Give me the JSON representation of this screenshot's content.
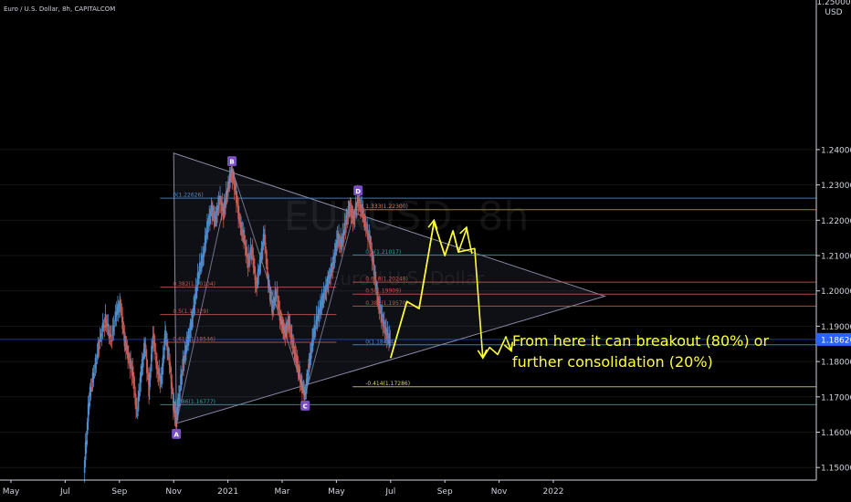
{
  "header": {
    "title": "Euro / U.S. Dollar, 8h, CAPITALCOM"
  },
  "watermark": {
    "symbol": "EURUSD, 8h",
    "name": "Euro / U.S. Dollar"
  },
  "colors": {
    "background": "#000000",
    "axis_text": "#d1d4dc",
    "up_candle": "#4f8fd0",
    "down_candle": "#c85a52",
    "pattern_line": "#8c8aa6",
    "arrow": "#ffff3a",
    "last_price_badge": "#2962ff"
  },
  "chart_data": {
    "type": "candlestick",
    "title": "Euro / U.S. Dollar, 8h, CAPITALCOM",
    "x_ticks": [
      {
        "label": "May",
        "t": 0
      },
      {
        "label": "Jul",
        "t": 2
      },
      {
        "label": "Sep",
        "t": 4
      },
      {
        "label": "Nov",
        "t": 6
      },
      {
        "label": "2021",
        "t": 8
      },
      {
        "label": "Mar",
        "t": 10
      },
      {
        "label": "May",
        "t": 12
      },
      {
        "label": "Jul",
        "t": 14
      },
      {
        "label": "Sep",
        "t": 16
      },
      {
        "label": "Nov",
        "t": 18
      },
      {
        "label": "2022",
        "t": 20
      }
    ],
    "y_axis": {
      "unit": "USD",
      "ylim": [
        1.1465,
        1.2435
      ],
      "ticks": [
        "1.15000",
        "1.16000",
        "1.17000",
        "1.18000",
        "1.19000",
        "1.20000",
        "1.21000",
        "1.22000",
        "1.23000",
        "1.24000"
      ],
      "tick_values": [
        1.15,
        1.16,
        1.17,
        1.18,
        1.19,
        1.2,
        1.21,
        1.22,
        1.23,
        1.24
      ],
      "top_partial_label": "1.25000"
    },
    "price_path": [
      [
        2.7,
        1.1485
      ],
      [
        2.9,
        1.17
      ],
      [
        3.1,
        1.178
      ],
      [
        3.3,
        1.187
      ],
      [
        3.5,
        1.192
      ],
      [
        3.7,
        1.186
      ],
      [
        3.9,
        1.194
      ],
      [
        4.05,
        1.196
      ],
      [
        4.2,
        1.186
      ],
      [
        4.35,
        1.181
      ],
      [
        4.5,
        1.177
      ],
      [
        4.65,
        1.165
      ],
      [
        4.8,
        1.176
      ],
      [
        4.95,
        1.185
      ],
      [
        5.1,
        1.172
      ],
      [
        5.25,
        1.188
      ],
      [
        5.4,
        1.178
      ],
      [
        5.55,
        1.174
      ],
      [
        5.7,
        1.188
      ],
      [
        5.85,
        1.18
      ],
      [
        6.0,
        1.168
      ],
      [
        6.1,
        1.1625
      ],
      [
        6.2,
        1.17
      ],
      [
        6.35,
        1.179
      ],
      [
        6.5,
        1.185
      ],
      [
        6.65,
        1.19
      ],
      [
        6.8,
        1.198
      ],
      [
        6.95,
        1.206
      ],
      [
        7.1,
        1.21
      ],
      [
        7.25,
        1.218
      ],
      [
        7.4,
        1.223
      ],
      [
        7.55,
        1.22
      ],
      [
        7.7,
        1.226
      ],
      [
        7.85,
        1.222
      ],
      [
        8.0,
        1.229
      ],
      [
        8.15,
        1.234
      ],
      [
        8.3,
        1.228
      ],
      [
        8.45,
        1.219
      ],
      [
        8.6,
        1.215
      ],
      [
        8.75,
        1.208
      ],
      [
        8.9,
        1.212
      ],
      [
        9.05,
        1.201
      ],
      [
        9.2,
        1.208
      ],
      [
        9.35,
        1.216
      ],
      [
        9.5,
        1.202
      ],
      [
        9.65,
        1.195
      ],
      [
        9.8,
        1.2
      ],
      [
        9.95,
        1.192
      ],
      [
        10.1,
        1.188
      ],
      [
        10.25,
        1.191
      ],
      [
        10.4,
        1.185
      ],
      [
        10.55,
        1.18
      ],
      [
        10.7,
        1.174
      ],
      [
        10.85,
        1.1705
      ],
      [
        11.0,
        1.179
      ],
      [
        11.15,
        1.187
      ],
      [
        11.3,
        1.192
      ],
      [
        11.45,
        1.196
      ],
      [
        11.6,
        1.2
      ],
      [
        11.75,
        1.204
      ],
      [
        11.9,
        1.208
      ],
      [
        12.05,
        1.215
      ],
      [
        12.2,
        1.213
      ],
      [
        12.35,
        1.219
      ],
      [
        12.5,
        1.224
      ],
      [
        12.65,
        1.22
      ],
      [
        12.8,
        1.226
      ],
      [
        12.95,
        1.223
      ],
      [
        13.1,
        1.218
      ],
      [
        13.25,
        1.214
      ],
      [
        13.4,
        1.206
      ],
      [
        13.55,
        1.197
      ],
      [
        13.7,
        1.192
      ],
      [
        13.85,
        1.188
      ],
      [
        14.0,
        1.186
      ]
    ],
    "pattern": {
      "triangle": [
        [
          6.0,
          1.239
        ],
        [
          21.9,
          1.1985
        ],
        [
          6.1,
          1.1625
        ]
      ],
      "waves": [
        {
          "label": "A",
          "t": 6.1,
          "p": 1.1625
        },
        {
          "label": "B",
          "t": 8.15,
          "p": 1.2345
        },
        {
          "label": "C",
          "t": 10.85,
          "p": 1.1705
        },
        {
          "label": "D",
          "t": 12.8,
          "p": 1.2262
        }
      ]
    },
    "fib_levels": [
      {
        "label": "0(1.22626)",
        "price": 1.22626,
        "color": "#4f8fd0",
        "t0": 5.5,
        "t1": 30
      },
      {
        "label": "0.382(1.20104)",
        "price": 1.20104,
        "color": "#c85a52",
        "t0": 5.5,
        "t1": 12.0
      },
      {
        "label": "0.5(1.19329)",
        "price": 1.19329,
        "color": "#c85a52",
        "t0": 5.5,
        "t1": 12.0
      },
      {
        "label": "0.618(1.18546)",
        "price": 1.18546,
        "color": "#c85a52",
        "t0": 5.5,
        "t1": 12.0
      },
      {
        "label": "0.886(1.16777)",
        "price": 1.16777,
        "color": "#26a69a",
        "t0": 5.5,
        "t1": 30
      },
      {
        "label": "1.333(1.22300)",
        "price": 1.223,
        "color": "#e08050",
        "t0": 12.6,
        "t1": 30
      },
      {
        "label": "0.5(1.21017)",
        "price": 1.21017,
        "color": "#26a69a",
        "t0": 12.6,
        "t1": 30
      },
      {
        "label": "0.618(1.20248)",
        "price": 1.20248,
        "color": "#c85a52",
        "t0": 12.6,
        "t1": 30
      },
      {
        "label": "0.5(1.19909)",
        "price": 1.19909,
        "color": "#c85a52",
        "t0": 12.6,
        "t1": 30
      },
      {
        "label": "0.382(1.19570)",
        "price": 1.1957,
        "color": "#c85a52",
        "t0": 12.6,
        "t1": 30
      },
      {
        "label": "0(1.18474)",
        "price": 1.18474,
        "color": "#4f8fd0",
        "t0": 12.6,
        "t1": 30
      },
      {
        "label": "-0.414(1.17286)",
        "price": 1.17286,
        "color": "#d6d36a",
        "t0": 12.6,
        "t1": 30
      }
    ],
    "projection_paths": [
      {
        "name": "breakout",
        "points": [
          [
            14.0,
            1.181
          ],
          [
            14.6,
            1.197
          ],
          [
            15.05,
            1.195
          ],
          [
            15.6,
            1.2195
          ],
          [
            16.0,
            1.21
          ],
          [
            16.3,
            1.217
          ],
          [
            16.5,
            1.211
          ],
          [
            16.8,
            1.2175
          ],
          [
            17.0,
            1.2105
          ]
        ],
        "arrows": [
          [
            15.6,
            1.22
          ],
          [
            16.8,
            1.218
          ]
        ]
      },
      {
        "name": "consolidation",
        "points": [
          [
            14.0,
            1.181
          ],
          [
            14.6,
            1.197
          ],
          [
            15.05,
            1.195
          ],
          [
            15.6,
            1.2195
          ],
          [
            16.0,
            1.21
          ],
          [
            16.3,
            1.217
          ],
          [
            16.5,
            1.211
          ],
          [
            17.1,
            1.212
          ],
          [
            17.4,
            1.181
          ],
          [
            17.65,
            1.184
          ],
          [
            17.95,
            1.182
          ],
          [
            18.25,
            1.187
          ],
          [
            18.45,
            1.183
          ]
        ],
        "arrows": [
          [
            17.4,
            1.181
          ],
          [
            18.45,
            1.183
          ]
        ]
      }
    ],
    "last_price": {
      "label": "1.18626",
      "value": 1.18626
    },
    "annotation": {
      "lines": [
        "From here it can breakout (80%) or",
        "further consolidation (20%)"
      ]
    }
  }
}
